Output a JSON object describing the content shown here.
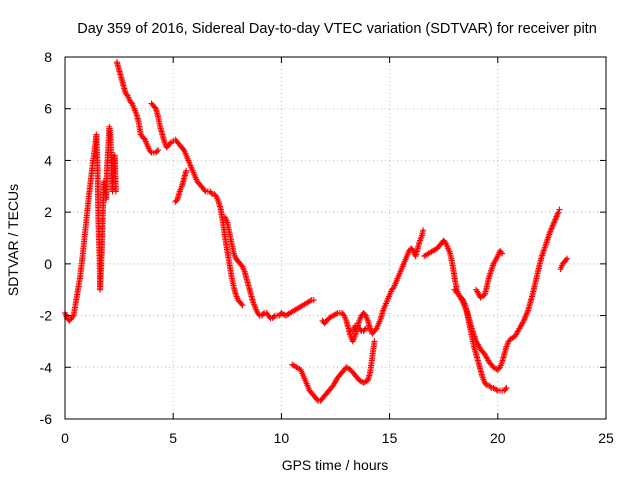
{
  "chart_data": {
    "type": "scatter",
    "title": "Day 359 of 2016, Sidereal Day-to-day VTEC variation (SDTVAR) for receiver pitn",
    "xlabel": "GPS time / hours",
    "ylabel": "SDTVAR / TECUs",
    "xlim": [
      0,
      25
    ],
    "ylim": [
      -6,
      8
    ],
    "xticks": [
      0,
      5,
      10,
      15,
      20,
      25
    ],
    "yticks": [
      -6,
      -4,
      -2,
      0,
      2,
      4,
      6,
      8
    ],
    "xtick_labels": [
      "0",
      "5",
      "10",
      "15",
      "20",
      "25"
    ],
    "ytick_labels": [
      "-6",
      "-4",
      "-2",
      "0",
      "2",
      "4",
      "6",
      "8"
    ],
    "grid": true,
    "legend": "none",
    "marker": "plus",
    "color": "#ff0000",
    "series": [
      {
        "points": [
          [
            0.0,
            -1.9
          ],
          [
            0.1,
            -2.1
          ],
          [
            0.2,
            -2.2
          ],
          [
            0.3,
            -2.1
          ],
          [
            0.4,
            -2.0
          ],
          [
            0.5,
            -1.5
          ],
          [
            0.6,
            -1.0
          ],
          [
            0.7,
            -0.5
          ],
          [
            0.8,
            0.2
          ],
          [
            0.9,
            1.0
          ],
          [
            1.0,
            1.8
          ],
          [
            1.1,
            2.6
          ],
          [
            1.2,
            3.3
          ],
          [
            1.3,
            4.0
          ],
          [
            1.4,
            4.6
          ],
          [
            1.45,
            5.0
          ],
          [
            1.5,
            3.8
          ],
          [
            1.55,
            1.5
          ],
          [
            1.6,
            0.2
          ],
          [
            1.62,
            -1.0
          ],
          [
            1.7,
            0.5
          ],
          [
            1.75,
            2.0
          ],
          [
            1.8,
            3.2
          ],
          [
            1.9,
            2.5
          ],
          [
            1.95,
            3.8
          ],
          [
            2.0,
            4.5
          ],
          [
            2.05,
            5.3
          ],
          [
            2.1,
            5.0
          ],
          [
            2.15,
            3.8
          ],
          [
            2.2,
            2.8
          ],
          [
            2.25,
            3.5
          ],
          [
            2.3,
            4.2
          ],
          [
            2.35,
            2.8
          ]
        ]
      },
      {
        "points": [
          [
            2.4,
            7.8
          ],
          [
            2.5,
            7.5
          ],
          [
            2.6,
            7.2
          ],
          [
            2.7,
            6.9
          ],
          [
            2.8,
            6.6
          ],
          [
            2.9,
            6.5
          ],
          [
            3.0,
            6.3
          ],
          [
            3.1,
            6.2
          ],
          [
            3.2,
            6.0
          ],
          [
            3.3,
            5.8
          ],
          [
            3.4,
            5.5
          ],
          [
            3.5,
            5.0
          ],
          [
            3.6,
            4.9
          ],
          [
            3.7,
            4.8
          ],
          [
            3.8,
            4.6
          ],
          [
            3.9,
            4.4
          ],
          [
            4.0,
            4.3
          ],
          [
            4.1,
            4.3
          ],
          [
            4.2,
            4.3
          ],
          [
            4.3,
            4.4
          ]
        ]
      },
      {
        "points": [
          [
            4.0,
            6.2
          ],
          [
            4.1,
            6.1
          ],
          [
            4.2,
            6.0
          ],
          [
            4.3,
            5.7
          ],
          [
            4.4,
            5.3
          ],
          [
            4.5,
            5.0
          ],
          [
            4.6,
            4.7
          ],
          [
            4.7,
            4.5
          ],
          [
            4.8,
            4.6
          ],
          [
            4.9,
            4.7
          ],
          [
            5.0,
            4.75
          ],
          [
            5.1,
            4.8
          ],
          [
            5.2,
            4.7
          ],
          [
            5.3,
            4.6
          ],
          [
            5.4,
            4.5
          ],
          [
            5.5,
            4.4
          ],
          [
            5.6,
            4.2
          ],
          [
            5.7,
            4.0
          ],
          [
            5.8,
            3.8
          ],
          [
            5.9,
            3.6
          ],
          [
            6.0,
            3.4
          ],
          [
            6.1,
            3.2
          ],
          [
            6.2,
            3.1
          ],
          [
            6.3,
            3.0
          ],
          [
            6.4,
            2.9
          ],
          [
            6.5,
            2.8
          ],
          [
            6.6,
            2.8
          ],
          [
            6.7,
            2.8
          ],
          [
            6.8,
            2.7
          ],
          [
            6.9,
            2.7
          ],
          [
            7.0,
            2.6
          ],
          [
            7.1,
            2.4
          ],
          [
            7.2,
            2.1
          ],
          [
            7.3,
            1.6
          ],
          [
            7.4,
            1.0
          ],
          [
            7.5,
            0.5
          ],
          [
            7.6,
            0.0
          ],
          [
            7.7,
            -0.5
          ],
          [
            7.8,
            -0.9
          ],
          [
            7.9,
            -1.2
          ],
          [
            8.0,
            -1.4
          ],
          [
            8.1,
            -1.5
          ],
          [
            8.2,
            -1.6
          ]
        ]
      },
      {
        "points": [
          [
            5.1,
            2.4
          ],
          [
            5.2,
            2.5
          ],
          [
            5.3,
            2.8
          ],
          [
            5.4,
            3.0
          ],
          [
            5.5,
            3.3
          ],
          [
            5.6,
            3.6
          ]
        ]
      },
      {
        "points": [
          [
            7.4,
            1.8
          ],
          [
            7.5,
            1.6
          ],
          [
            7.6,
            1.2
          ],
          [
            7.7,
            0.8
          ],
          [
            7.8,
            0.4
          ],
          [
            7.9,
            0.2
          ],
          [
            8.0,
            0.1
          ],
          [
            8.1,
            0.0
          ],
          [
            8.2,
            -0.1
          ],
          [
            8.3,
            -0.3
          ],
          [
            8.4,
            -0.6
          ],
          [
            8.5,
            -0.9
          ],
          [
            8.6,
            -1.2
          ],
          [
            8.7,
            -1.5
          ],
          [
            8.8,
            -1.7
          ],
          [
            8.9,
            -1.9
          ],
          [
            9.0,
            -2.0
          ],
          [
            9.1,
            -2.0
          ],
          [
            9.2,
            -1.9
          ],
          [
            9.3,
            -1.9
          ],
          [
            9.4,
            -2.0
          ],
          [
            9.5,
            -2.1
          ],
          [
            9.6,
            -2.1
          ],
          [
            9.7,
            -2.0
          ],
          [
            9.8,
            -2.0
          ],
          [
            9.9,
            -2.0
          ],
          [
            10.0,
            -1.9
          ],
          [
            10.2,
            -2.0
          ],
          [
            10.4,
            -1.9
          ],
          [
            10.6,
            -1.8
          ],
          [
            10.8,
            -1.7
          ],
          [
            11.0,
            -1.6
          ],
          [
            11.2,
            -1.5
          ],
          [
            11.4,
            -1.4
          ],
          [
            11.5,
            -1.4
          ]
        ]
      },
      {
        "points": [
          [
            10.5,
            -3.9
          ],
          [
            10.7,
            -4.0
          ],
          [
            10.9,
            -4.1
          ],
          [
            11.0,
            -4.3
          ],
          [
            11.1,
            -4.5
          ],
          [
            11.2,
            -4.7
          ],
          [
            11.3,
            -4.9
          ],
          [
            11.4,
            -5.0
          ],
          [
            11.5,
            -5.1
          ],
          [
            11.6,
            -5.2
          ],
          [
            11.7,
            -5.3
          ],
          [
            11.8,
            -5.3
          ],
          [
            11.9,
            -5.2
          ],
          [
            12.0,
            -5.1
          ],
          [
            12.2,
            -4.9
          ],
          [
            12.4,
            -4.7
          ],
          [
            12.6,
            -4.4
          ],
          [
            12.8,
            -4.2
          ],
          [
            13.0,
            -4.0
          ],
          [
            13.2,
            -4.1
          ],
          [
            13.4,
            -4.3
          ],
          [
            13.6,
            -4.5
          ],
          [
            13.8,
            -4.6
          ],
          [
            14.0,
            -4.5
          ],
          [
            14.1,
            -4.2
          ],
          [
            14.2,
            -3.6
          ],
          [
            14.3,
            -3.0
          ]
        ]
      },
      {
        "points": [
          [
            11.9,
            -2.2
          ],
          [
            12.0,
            -2.3
          ],
          [
            12.1,
            -2.2
          ],
          [
            12.2,
            -2.1
          ],
          [
            12.4,
            -2.0
          ],
          [
            12.6,
            -1.9
          ],
          [
            12.8,
            -1.9
          ],
          [
            12.9,
            -2.0
          ],
          [
            13.0,
            -2.2
          ],
          [
            13.1,
            -2.5
          ],
          [
            13.2,
            -2.8
          ],
          [
            13.3,
            -3.0
          ],
          [
            13.4,
            -2.8
          ],
          [
            13.5,
            -2.5
          ],
          [
            13.6,
            -2.2
          ],
          [
            13.7,
            -2.0
          ],
          [
            13.8,
            -1.9
          ],
          [
            13.9,
            -2.0
          ],
          [
            14.0,
            -2.2
          ],
          [
            14.1,
            -2.5
          ],
          [
            14.2,
            -2.7
          ],
          [
            14.3,
            -2.6
          ],
          [
            14.4,
            -2.5
          ],
          [
            14.5,
            -2.3
          ],
          [
            14.6,
            -2.1
          ],
          [
            14.7,
            -1.8
          ],
          [
            14.8,
            -1.6
          ],
          [
            14.9,
            -1.4
          ],
          [
            15.0,
            -1.2
          ],
          [
            15.1,
            -1.0
          ],
          [
            15.2,
            -0.9
          ],
          [
            15.3,
            -0.7
          ],
          [
            15.4,
            -0.5
          ],
          [
            15.5,
            -0.3
          ],
          [
            15.6,
            -0.1
          ],
          [
            15.7,
            0.1
          ],
          [
            15.8,
            0.3
          ],
          [
            15.9,
            0.5
          ],
          [
            16.0,
            0.6
          ],
          [
            16.1,
            0.5
          ],
          [
            16.2,
            0.3
          ],
          [
            16.3,
            0.6
          ],
          [
            16.4,
            0.9
          ],
          [
            16.5,
            1.1
          ],
          [
            16.55,
            1.3
          ]
        ]
      },
      {
        "points": [
          [
            13.3,
            -2.6
          ],
          [
            13.4,
            -2.4
          ],
          [
            13.5,
            -2.4
          ],
          [
            13.6,
            -2.5
          ],
          [
            13.7,
            -2.6
          ],
          [
            13.8,
            -2.6
          ],
          [
            13.9,
            -2.5
          ],
          [
            14.0,
            -2.5
          ]
        ]
      },
      {
        "points": [
          [
            16.6,
            0.3
          ],
          [
            16.8,
            0.4
          ],
          [
            17.0,
            0.5
          ],
          [
            17.2,
            0.6
          ],
          [
            17.4,
            0.8
          ],
          [
            17.5,
            0.9
          ],
          [
            17.6,
            0.8
          ],
          [
            17.7,
            0.6
          ],
          [
            17.8,
            0.4
          ],
          [
            17.9,
            0.0
          ],
          [
            18.0,
            -0.5
          ],
          [
            18.1,
            -1.0
          ],
          [
            18.2,
            -1.2
          ],
          [
            18.3,
            -1.3
          ],
          [
            18.4,
            -1.4
          ],
          [
            18.5,
            -1.6
          ],
          [
            18.6,
            -2.0
          ],
          [
            18.7,
            -2.4
          ],
          [
            18.8,
            -2.8
          ],
          [
            18.9,
            -3.2
          ],
          [
            19.0,
            -3.5
          ],
          [
            19.1,
            -3.8
          ],
          [
            19.2,
            -4.1
          ],
          [
            19.3,
            -4.4
          ],
          [
            19.4,
            -4.6
          ],
          [
            19.5,
            -4.7
          ],
          [
            19.6,
            -4.7
          ],
          [
            19.7,
            -4.8
          ],
          [
            19.8,
            -4.8
          ],
          [
            20.0,
            -4.9
          ],
          [
            20.2,
            -4.9
          ],
          [
            20.3,
            -4.9
          ],
          [
            20.4,
            -4.8
          ]
        ]
      },
      {
        "points": [
          [
            18.0,
            -1.0
          ],
          [
            18.2,
            -1.2
          ],
          [
            18.4,
            -1.5
          ],
          [
            18.6,
            -1.9
          ],
          [
            18.8,
            -2.5
          ],
          [
            19.0,
            -3.0
          ],
          [
            19.2,
            -3.3
          ],
          [
            19.4,
            -3.5
          ],
          [
            19.6,
            -3.8
          ],
          [
            19.8,
            -4.0
          ],
          [
            20.0,
            -4.1
          ],
          [
            20.1,
            -4.0
          ],
          [
            20.2,
            -3.8
          ],
          [
            20.3,
            -3.5
          ],
          [
            20.4,
            -3.2
          ],
          [
            20.5,
            -3.0
          ],
          [
            20.6,
            -2.9
          ],
          [
            20.8,
            -2.8
          ],
          [
            21.0,
            -2.5
          ],
          [
            21.2,
            -2.2
          ],
          [
            21.4,
            -1.8
          ],
          [
            21.6,
            -1.2
          ],
          [
            21.8,
            -0.5
          ],
          [
            22.0,
            0.2
          ],
          [
            22.2,
            0.7
          ],
          [
            22.4,
            1.2
          ],
          [
            22.6,
            1.6
          ],
          [
            22.8,
            2.0
          ],
          [
            22.85,
            2.1
          ]
        ]
      },
      {
        "points": [
          [
            19.0,
            -1.0
          ],
          [
            19.2,
            -1.3
          ],
          [
            19.4,
            -1.2
          ],
          [
            19.6,
            -0.5
          ],
          [
            19.8,
            0.0
          ],
          [
            20.0,
            0.3
          ],
          [
            20.1,
            0.5
          ],
          [
            20.2,
            0.4
          ]
        ]
      },
      {
        "points": [
          [
            22.9,
            -0.2
          ],
          [
            23.0,
            0.0
          ],
          [
            23.1,
            0.1
          ],
          [
            23.2,
            0.2
          ]
        ]
      }
    ]
  }
}
